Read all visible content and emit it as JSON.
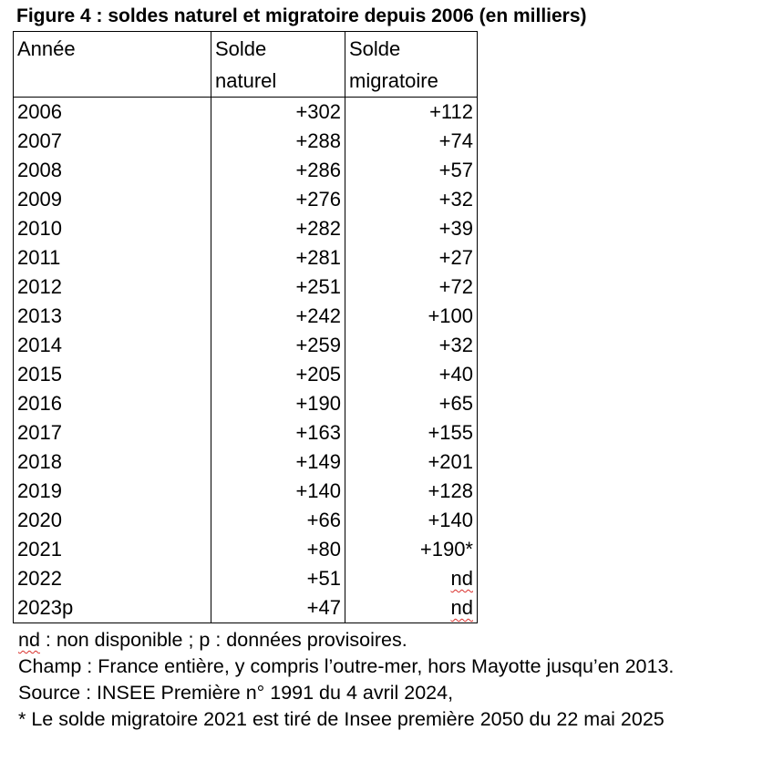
{
  "title": "Figure 4 : soldes naturel et migratoire depuis 2006 (en milliers)",
  "table": {
    "headers": {
      "year": "Année",
      "natural_line1": "Solde",
      "natural_line2": "naturel",
      "migration_line1": "Solde",
      "migration_line2": "migratoire"
    },
    "rows": [
      {
        "year": "2006",
        "natural": "+302",
        "migration": "+112"
      },
      {
        "year": "2007",
        "natural": "+288",
        "migration": "+74"
      },
      {
        "year": "2008",
        "natural": "+286",
        "migration": "+57"
      },
      {
        "year": "2009",
        "natural": "+276",
        "migration": "+32"
      },
      {
        "year": "2010",
        "natural": "+282",
        "migration": "+39"
      },
      {
        "year": "2011",
        "natural": "+281",
        "migration": "+27"
      },
      {
        "year": "2012",
        "natural": "+251",
        "migration": "+72"
      },
      {
        "year": "2013",
        "natural": "+242",
        "migration": "+100"
      },
      {
        "year": "2014",
        "natural": "+259",
        "migration": "+32"
      },
      {
        "year": "2015",
        "natural": "+205",
        "migration": "+40"
      },
      {
        "year": "2016",
        "natural": "+190",
        "migration": "+65"
      },
      {
        "year": "2017",
        "natural": "+163",
        "migration": "+155"
      },
      {
        "year": "2018",
        "natural": "+149",
        "migration": "+201"
      },
      {
        "year": "2019",
        "natural": "+140",
        "migration": "+128"
      },
      {
        "year": "2020",
        "natural": "+66",
        "migration": "+140"
      },
      {
        "year": "2021",
        "natural": "+80",
        "migration": "+190*"
      },
      {
        "year": "2022",
        "natural": "+51",
        "migration": "nd"
      },
      {
        "year": "2023p",
        "natural": "+47",
        "migration": "nd"
      }
    ]
  },
  "notes": {
    "legend_nd": "nd",
    "legend_rest": " : non disponible ; p : données provisoires.",
    "scope": "Champ : France entière, y compris l’outre-mer, hors Mayotte jusqu’en 2013.",
    "source": "Source : INSEE Première n° 1991 du 4 avril 2024,",
    "footnote": "* Le solde migratoire 2021 est tiré de Insee première 2050 du 22 mai 2025"
  }
}
